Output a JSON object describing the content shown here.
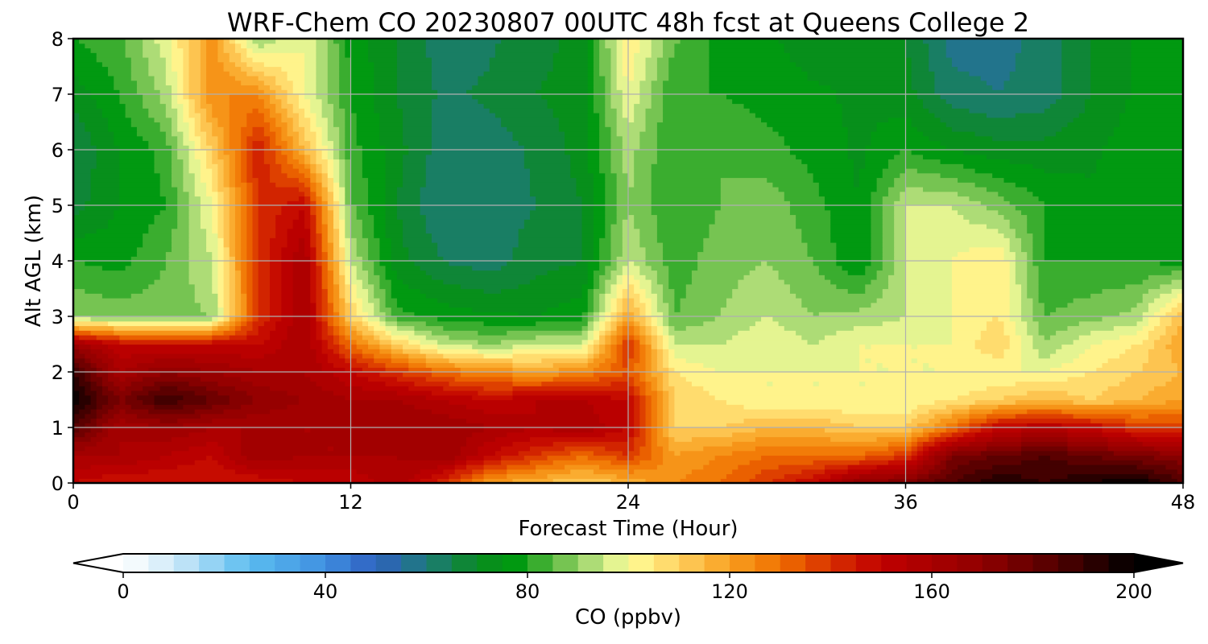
{
  "chart_data": {
    "type": "heatmap",
    "title": "WRF-Chem CO  20230807 00UTC 48h fcst at Queens College 2",
    "xlabel": "Forecast Time (Hour)",
    "ylabel": "Alt AGL (km)",
    "xlim": [
      0,
      48
    ],
    "ylim": [
      0,
      8
    ],
    "xticks": [
      0,
      12,
      24,
      36,
      48
    ],
    "yticks": [
      0,
      1,
      2,
      3,
      4,
      5,
      6,
      7,
      8
    ],
    "grid": true,
    "colorbar": {
      "label": "CO  (ppbv)",
      "range": [
        0,
        200
      ],
      "ticks": [
        0,
        40,
        80,
        120,
        160,
        200
      ],
      "step": 5,
      "extend": "both",
      "stops": [
        [
          0,
          "#ffffff"
        ],
        [
          10,
          "#cfeaf8"
        ],
        [
          25,
          "#5bbcf0"
        ],
        [
          40,
          "#3f8fe0"
        ],
        [
          50,
          "#2f60c0"
        ],
        [
          60,
          "#1e7a7a"
        ],
        [
          70,
          "#0a8a20"
        ],
        [
          78,
          "#009a10"
        ],
        [
          85,
          "#5ab840"
        ],
        [
          95,
          "#c8e888"
        ],
        [
          100,
          "#ffff99"
        ],
        [
          110,
          "#ffd060"
        ],
        [
          120,
          "#f8a020"
        ],
        [
          130,
          "#f07000"
        ],
        [
          140,
          "#d83000"
        ],
        [
          150,
          "#c00000"
        ],
        [
          170,
          "#900000"
        ],
        [
          185,
          "#500000"
        ],
        [
          200,
          "#000000"
        ]
      ]
    },
    "x": [
      0,
      2,
      4,
      6,
      8,
      10,
      12,
      14,
      16,
      18,
      20,
      22,
      24,
      26,
      28,
      30,
      32,
      34,
      36,
      38,
      40,
      42,
      44,
      46,
      48
    ],
    "y": [
      0,
      0.5,
      1,
      1.5,
      2,
      2.5,
      3,
      4,
      5,
      6,
      7,
      8
    ],
    "z": [
      [
        150,
        145,
        145,
        145,
        145,
        150,
        150,
        160,
        140,
        120,
        115,
        110,
        115,
        125,
        130,
        140,
        150,
        170,
        175,
        185,
        195,
        190,
        195,
        200,
        185
      ],
      [
        160,
        160,
        155,
        150,
        165,
        160,
        160,
        160,
        165,
        150,
        140,
        130,
        140,
        120,
        125,
        130,
        130,
        130,
        140,
        175,
        180,
        185,
        180,
        175,
        170
      ],
      [
        185,
        160,
        165,
        160,
        160,
        160,
        160,
        165,
        165,
        160,
        155,
        160,
        150,
        110,
        110,
        115,
        115,
        110,
        110,
        130,
        150,
        155,
        150,
        140,
        140
      ],
      [
        200,
        175,
        190,
        180,
        170,
        165,
        160,
        160,
        155,
        150,
        155,
        155,
        150,
        110,
        105,
        100,
        100,
        100,
        100,
        105,
        110,
        115,
        110,
        115,
        120
      ],
      [
        190,
        160,
        170,
        165,
        160,
        160,
        150,
        140,
        130,
        125,
        120,
        125,
        135,
        105,
        100,
        100,
        100,
        100,
        100,
        100,
        100,
        100,
        105,
        110,
        115
      ],
      [
        165,
        150,
        150,
        150,
        150,
        160,
        130,
        110,
        95,
        90,
        95,
        95,
        140,
        95,
        95,
        100,
        95,
        100,
        100,
        100,
        110,
        90,
        100,
        105,
        120
      ],
      [
        90,
        88,
        88,
        90,
        140,
        160,
        110,
        82,
        78,
        76,
        75,
        78,
        120,
        85,
        90,
        95,
        90,
        92,
        95,
        100,
        105,
        85,
        88,
        92,
        115
      ],
      [
        80,
        78,
        85,
        95,
        140,
        160,
        95,
        72,
        65,
        62,
        68,
        70,
        95,
        82,
        88,
        90,
        85,
        75,
        95,
        100,
        105,
        80,
        80,
        80,
        78
      ],
      [
        68,
        75,
        80,
        100,
        140,
        150,
        86,
        70,
        60,
        62,
        65,
        70,
        90,
        80,
        85,
        88,
        82,
        75,
        95,
        95,
        88,
        80,
        76,
        76,
        76
      ],
      [
        65,
        75,
        82,
        110,
        145,
        115,
        82,
        72,
        62,
        62,
        66,
        72,
        92,
        80,
        85,
        82,
        78,
        74,
        80,
        75,
        72,
        72,
        74,
        78,
        78
      ],
      [
        72,
        80,
        92,
        125,
        125,
        100,
        80,
        70,
        64,
        66,
        70,
        72,
        100,
        80,
        80,
        78,
        76,
        74,
        72,
        62,
        60,
        62,
        70,
        76,
        76
      ],
      [
        80,
        84,
        98,
        122,
        90,
        100,
        78,
        70,
        62,
        64,
        68,
        72,
        105,
        86,
        78,
        76,
        72,
        74,
        70,
        58,
        58,
        62,
        70,
        76,
        76
      ]
    ]
  }
}
